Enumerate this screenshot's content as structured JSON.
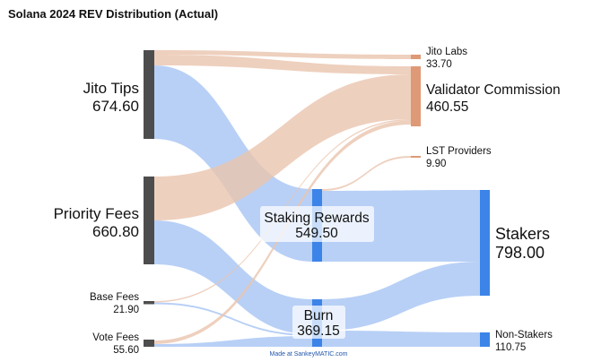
{
  "title": "Solana 2024 REV Distribution (Actual)",
  "credit": "Made at SankeyMATIC.com",
  "colors": {
    "node_dark": "#4d4d4d",
    "node_blue": "#3c84e8",
    "node_orange": "#de9a76",
    "flow_blue": "#a8c6f4",
    "flow_orange": "#eac4ae"
  },
  "nodes": {
    "jito_tips": {
      "name": "Jito Tips",
      "value": "674.60"
    },
    "priority_fees": {
      "name": "Priority Fees",
      "value": "660.80"
    },
    "base_fees": {
      "name": "Base Fees",
      "value": "21.90"
    },
    "vote_fees": {
      "name": "Vote Fees",
      "value": "55.60"
    },
    "jito_labs": {
      "name": "Jito Labs",
      "value": "33.70"
    },
    "validator_commission": {
      "name": "Validator Commission",
      "value": "460.55"
    },
    "lst_providers": {
      "name": "LST Providers",
      "value": "9.90"
    },
    "staking_rewards": {
      "name": "Staking Rewards",
      "value": "549.50"
    },
    "burn": {
      "name": "Burn",
      "value": "369.15"
    },
    "stakers": {
      "name": "Stakers",
      "value": "798.00"
    },
    "non_stakers": {
      "name": "Non-Stakers",
      "value": "110.75"
    }
  }
}
